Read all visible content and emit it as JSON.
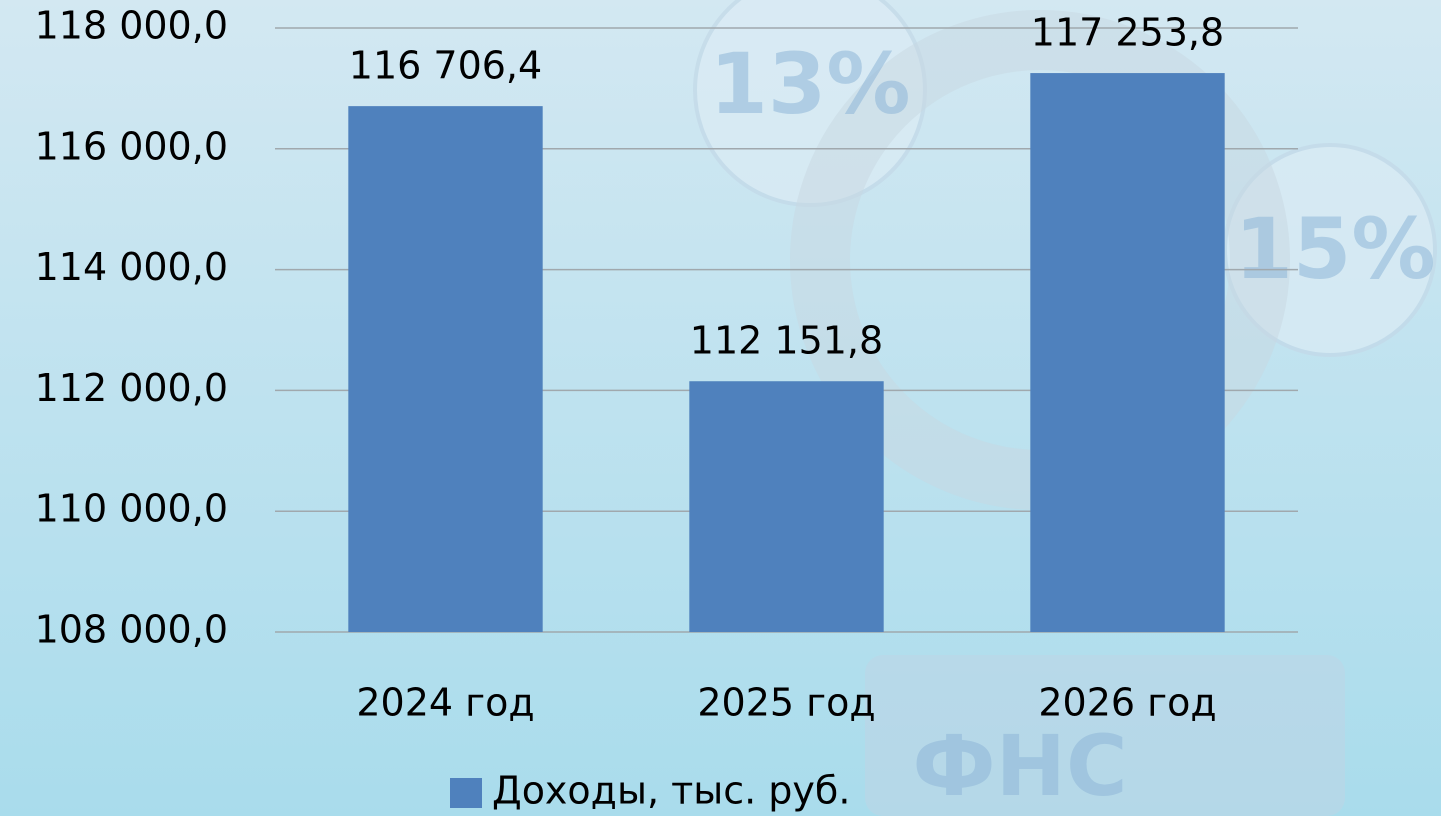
{
  "chart_data": {
    "type": "bar",
    "categories": [
      "2024 год",
      "2025 год",
      "2026 год"
    ],
    "series": [
      {
        "name": "Доходы, тыс. руб.",
        "color": "#4f81bd",
        "values": [
          116706.4,
          112151.8,
          117253.8
        ],
        "value_labels": [
          "116 706,4",
          "112 151,8",
          "117 253,8"
        ]
      }
    ],
    "ylim": [
      108000,
      118000
    ],
    "yticks": [
      {
        "value": 108000,
        "label": "108 000,0"
      },
      {
        "value": 110000,
        "label": "110 000,0"
      },
      {
        "value": 112000,
        "label": "112 000,0"
      },
      {
        "value": 114000,
        "label": "114 000,0"
      },
      {
        "value": 116000,
        "label": "116 000,0"
      },
      {
        "value": 118000,
        "label": "118 000,0"
      }
    ],
    "grid": true,
    "legend": "bottom",
    "annotations": [
      "13%",
      "15%",
      "ФНС"
    ]
  }
}
